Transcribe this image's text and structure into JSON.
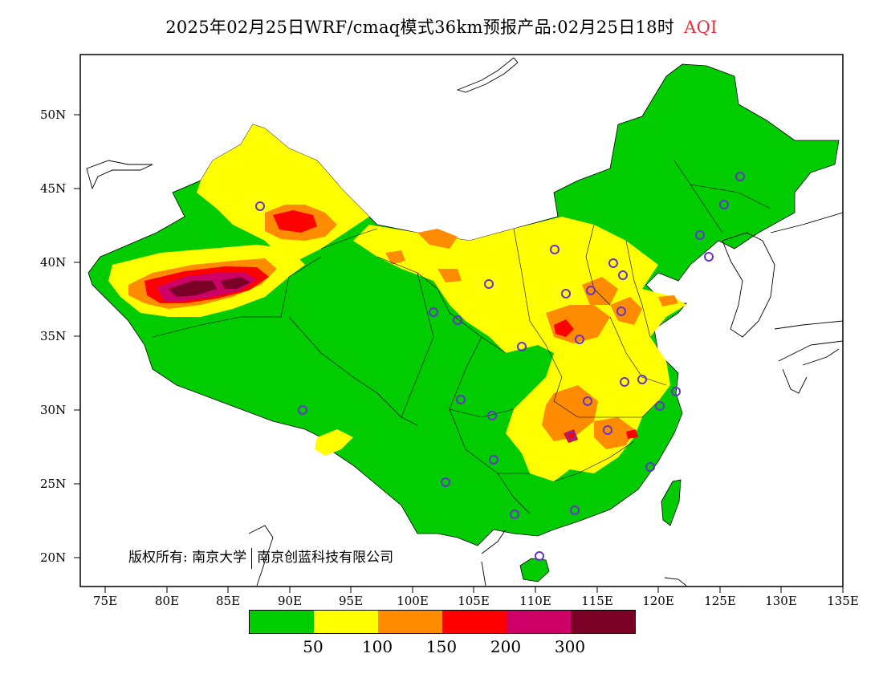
{
  "title": {
    "main": "2025年02月25日WRF/cmaq模式36km预报产品:02月25日18时",
    "variable": "AQI"
  },
  "map": {
    "lat_labels": [
      "50N",
      "45N",
      "40N",
      "35N",
      "30N",
      "25N",
      "20N"
    ],
    "lon_labels": [
      "75E",
      "80E",
      "85E",
      "90E",
      "95E",
      "100E",
      "105E",
      "110E",
      "115E",
      "120E",
      "125E",
      "130E",
      "135E"
    ],
    "extent": {
      "lon_min": 73,
      "lon_max": 135,
      "lat_min": 18,
      "lat_max": 54
    }
  },
  "copyright": {
    "label": "版权所有:",
    "org1": "南京大学",
    "org2": "南京创蓝科技有限公司"
  },
  "legend": {
    "colors": [
      "#00cc00",
      "#ffff00",
      "#ff8c00",
      "#ff0000",
      "#cc0066",
      "#7a0026"
    ],
    "thresholds": [
      "50",
      "100",
      "150",
      "200",
      "300"
    ]
  },
  "colors": {
    "good": "#00cc00",
    "moderate": "#ffff00",
    "sensitive": "#ff8c00",
    "unhealthy": "#ff0000",
    "very_unhealthy": "#cc0066",
    "hazardous": "#7a0026",
    "station_marker": "#6633cc"
  }
}
